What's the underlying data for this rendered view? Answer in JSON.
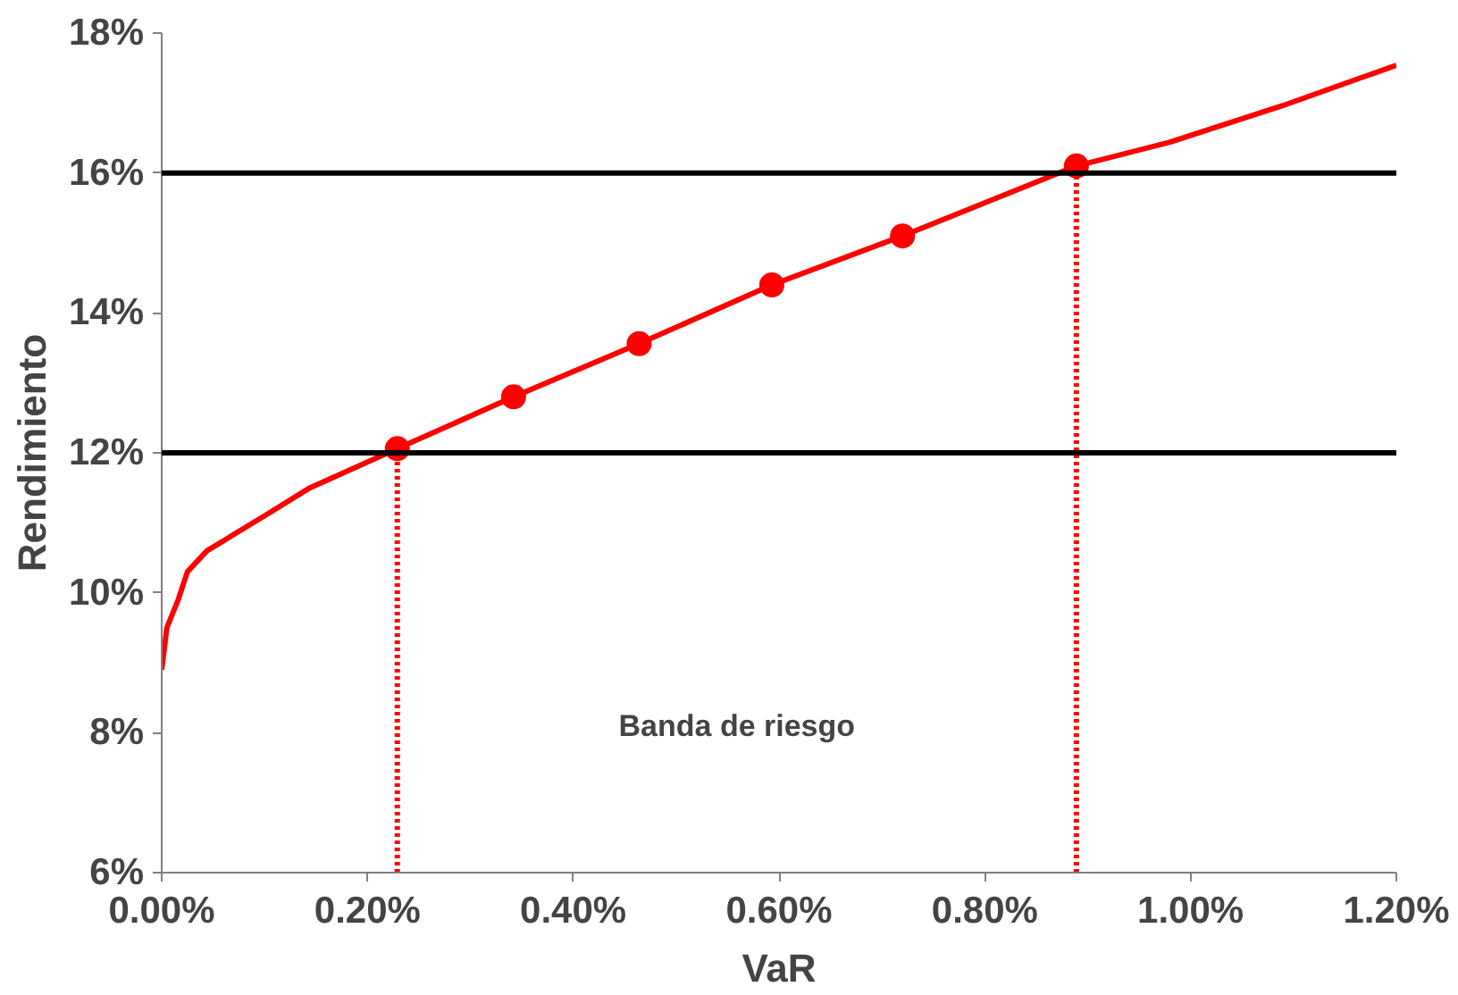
{
  "chart_data": {
    "type": "line",
    "xlabel": "VaR",
    "ylabel": "Rendimiento",
    "xlim": [
      0,
      1.2
    ],
    "ylim": [
      6,
      18
    ],
    "xticks": [
      {
        "value": 0,
        "label": "0.00%"
      },
      {
        "value": 0.2,
        "label": "0.20%"
      },
      {
        "value": 0.4,
        "label": "0.40%"
      },
      {
        "value": 0.6,
        "label": "0.60%"
      },
      {
        "value": 0.8,
        "label": "0.80%"
      },
      {
        "value": 1.0,
        "label": "1.00%"
      },
      {
        "value": 1.2,
        "label": "1.20%"
      }
    ],
    "yticks": [
      {
        "value": 6,
        "label": "6%"
      },
      {
        "value": 8,
        "label": "8%"
      },
      {
        "value": 10,
        "label": "10%"
      },
      {
        "value": 12,
        "label": "12%"
      },
      {
        "value": 14,
        "label": "14%"
      },
      {
        "value": 16,
        "label": "16%"
      },
      {
        "value": 18,
        "label": "18%"
      }
    ],
    "grid": false,
    "series": [
      {
        "color": "#ff0000",
        "marker": "none",
        "line_style": "solid",
        "x": [
          0,
          0.005,
          0.016,
          0.025,
          0.044,
          0.1,
          0.144,
          0.229,
          0.342,
          0.464,
          0.593,
          0.72,
          0.889,
          0.98,
          1.089,
          1.2
        ],
        "values": [
          8.9,
          9.5,
          9.9,
          10.3,
          10.6,
          11.1,
          11.5,
          12.06,
          12.8,
          13.56,
          14.4,
          15.1,
          16.1,
          16.44,
          16.96,
          17.54
        ]
      },
      {
        "type": "scatter",
        "color": "#ff0000",
        "marker": "circle",
        "x": [
          0.229,
          0.342,
          0.464,
          0.593,
          0.72,
          0.889
        ],
        "values": [
          12.06,
          12.8,
          13.56,
          14.4,
          15.1,
          16.1
        ]
      },
      {
        "type": "line",
        "color": "#ff0000",
        "marker": "none",
        "line_style": "dotted",
        "x": [
          0.229,
          0.229
        ],
        "values": [
          6,
          12.06
        ]
      },
      {
        "type": "line",
        "color": "#ff0000",
        "marker": "none",
        "line_style": "dotted",
        "x": [
          0.889,
          0.889
        ],
        "values": [
          6,
          16.1
        ]
      }
    ],
    "ref_lines": [
      {
        "axis": "y",
        "value": 12,
        "color": "#000000"
      },
      {
        "axis": "y",
        "value": 16,
        "color": "#000000"
      }
    ],
    "annotations": [
      "Banda de riesgo"
    ]
  }
}
